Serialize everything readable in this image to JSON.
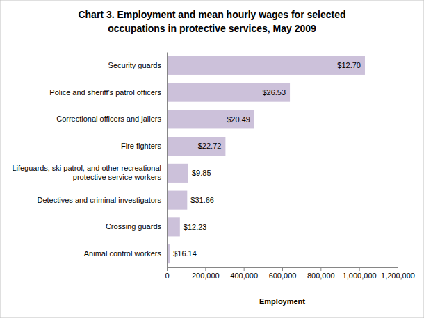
{
  "chart_data": {
    "type": "bar",
    "orientation": "horizontal",
    "title": "Chart 3. Employment and mean hourly wages for selected occupations in protective services, May 2009",
    "xlabel": "Employment",
    "categories": [
      "Security guards",
      "Police and sheriff's patrol officers",
      "Correctional officers and jailers",
      "Fire fighters",
      "Lifeguards, ski patrol, and other recreational protective service workers",
      "Detectives and criminal investigators",
      "Crossing guards",
      "Animal control workers"
    ],
    "values": [
      1030000,
      640000,
      455000,
      305000,
      112000,
      106000,
      68000,
      15000
    ],
    "wages": [
      12.7,
      26.53,
      20.49,
      22.72,
      9.85,
      31.66,
      12.23,
      16.14
    ],
    "wage_labels": [
      "$12.70",
      "$26.53",
      "$20.49",
      "$22.72",
      "$9.85",
      "$31.66",
      "$12.23",
      "$16.14"
    ],
    "color": "#ccc1da",
    "xlim": [
      0,
      1200000
    ],
    "xticks": [
      0,
      {
        "value": 200000,
        "label": "200,000"
      },
      {
        "value": 400000,
        "label": "400,000"
      },
      {
        "value": 600000,
        "label": "600,000"
      },
      {
        "value": 800000,
        "label": "800,000"
      },
      {
        "value": 1000000,
        "label": "1,000,000"
      },
      {
        "value": 1200000,
        "label": "1,200,000"
      }
    ],
    "grid": false
  }
}
